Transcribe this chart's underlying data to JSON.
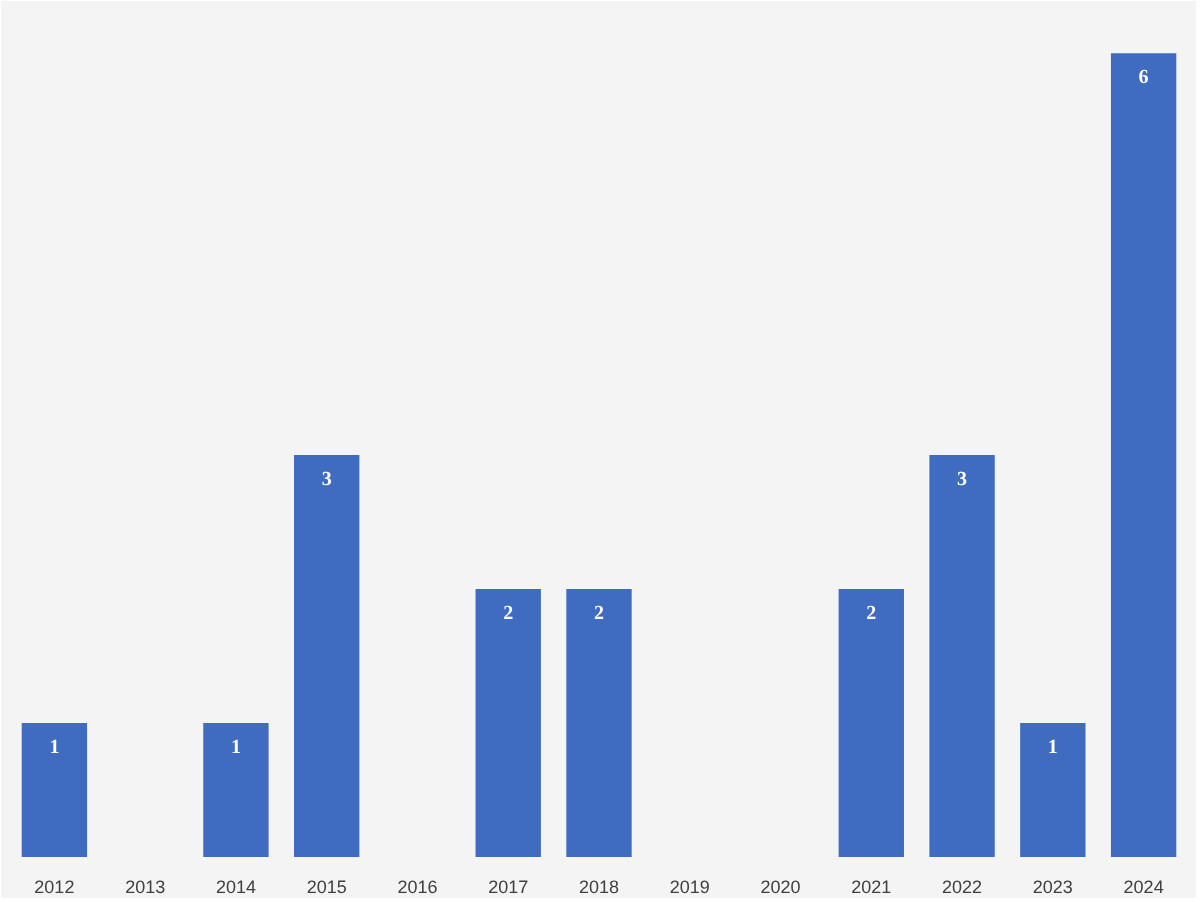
{
  "chart_data": {
    "type": "bar",
    "categories": [
      "2012",
      "2013",
      "2014",
      "2015",
      "2016",
      "2017",
      "2018",
      "2019",
      "2020",
      "2021",
      "2022",
      "2023",
      "2024"
    ],
    "values": [
      1,
      0,
      1,
      3,
      0,
      2,
      2,
      0,
      0,
      2,
      3,
      1,
      6
    ],
    "value_labels": [
      "1",
      null,
      "1",
      "3",
      null,
      "2",
      "2",
      null,
      null,
      "2",
      "3",
      "1",
      "6"
    ],
    "color": "#3f6bc0",
    "grid": false
  }
}
